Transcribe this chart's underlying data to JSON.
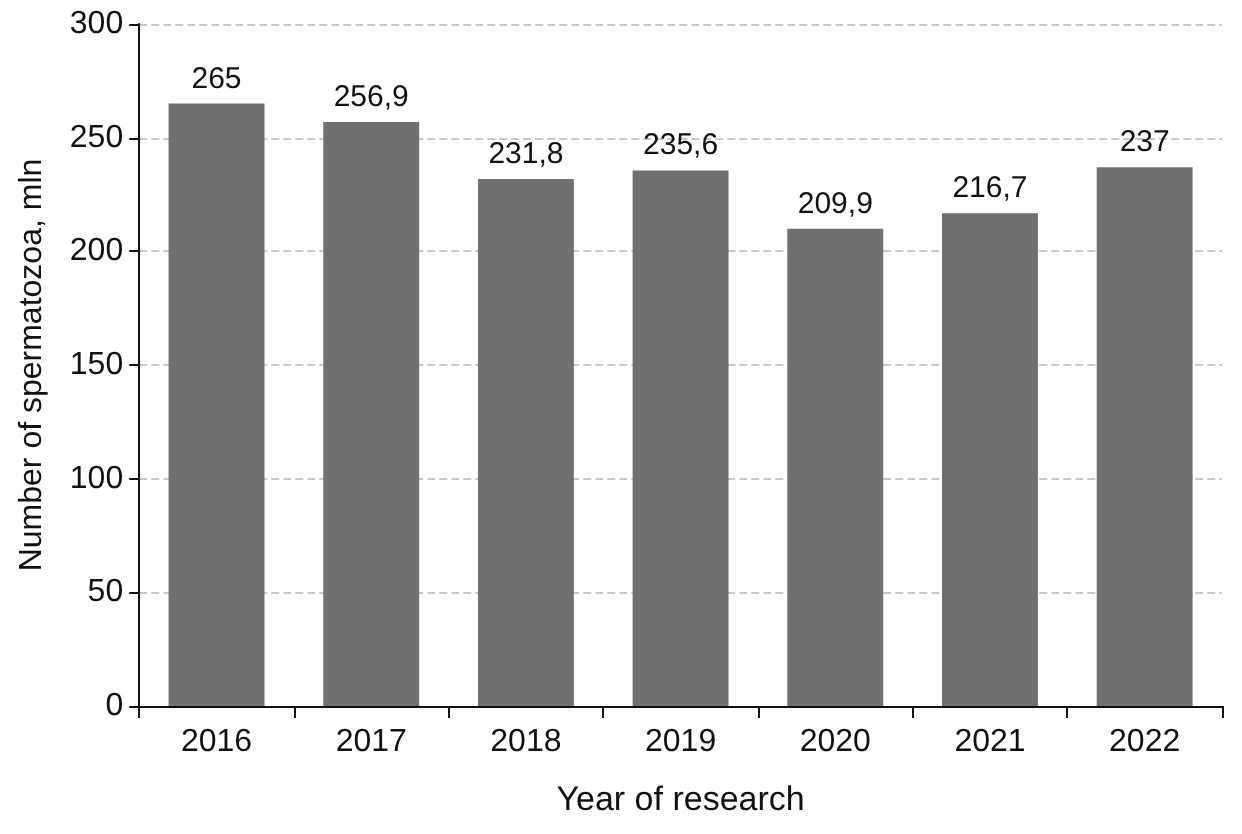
{
  "chart_data": {
    "type": "bar",
    "xlabel": "Year of research",
    "ylabel": "Number of spermatozoa, mln",
    "categories": [
      "2016",
      "2017",
      "2018",
      "2019",
      "2020",
      "2021",
      "2022"
    ],
    "values": [
      265,
      256.9,
      231.8,
      235.6,
      209.9,
      216.7,
      237
    ],
    "value_labels": [
      "265",
      "256,9",
      "231,8",
      "235,6",
      "209,9",
      "216,7",
      "237"
    ],
    "color": "#707073",
    "ylim": [
      0,
      300
    ],
    "yticks": [
      0,
      50,
      100,
      150,
      200,
      250,
      300
    ],
    "grid": "y"
  }
}
